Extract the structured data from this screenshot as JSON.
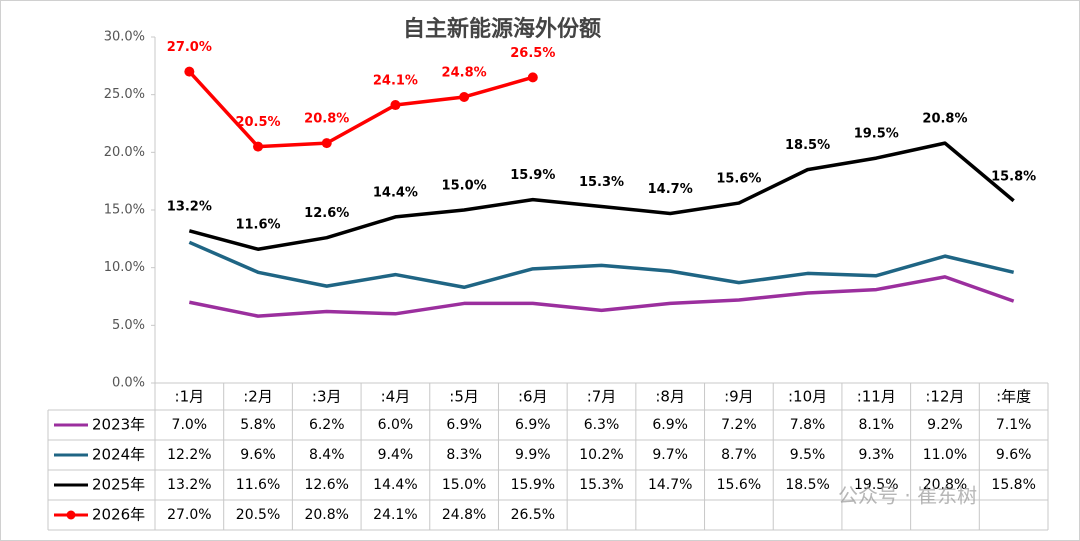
{
  "chart_data": {
    "type": "line",
    "title": "自主新能源海外份额",
    "categories": [
      ":1月",
      ":2月",
      ":3月",
      ":4月",
      ":5月",
      ":6月",
      ":7月",
      ":8月",
      ":9月",
      ":10月",
      ":11月",
      ":12月",
      ":年度"
    ],
    "ylim": [
      0,
      30
    ],
    "yticks": [
      {
        "value": 0,
        "label": "0.0%"
      },
      {
        "value": 5,
        "label": "5.0%"
      },
      {
        "value": 10,
        "label": "10.0%"
      },
      {
        "value": 15,
        "label": "15.0%"
      },
      {
        "value": 20,
        "label": "20.0%"
      },
      {
        "value": 25,
        "label": "25.0%"
      },
      {
        "value": 30,
        "label": "30.0%"
      }
    ],
    "grid": false,
    "series": [
      {
        "name": "2023年",
        "color": "#9b2f9e",
        "values": [
          7.0,
          5.8,
          6.2,
          6.0,
          6.9,
          6.9,
          6.3,
          6.9,
          7.2,
          7.8,
          8.1,
          9.2,
          7.1
        ],
        "value_labels": [
          "7.0%",
          "5.8%",
          "6.2%",
          "6.0%",
          "6.9%",
          "6.9%",
          "6.3%",
          "6.9%",
          "7.2%",
          "7.8%",
          "8.1%",
          "9.2%",
          "7.1%"
        ]
      },
      {
        "name": "2024年",
        "color": "#1f6584",
        "values": [
          12.2,
          9.6,
          8.4,
          9.4,
          8.3,
          9.9,
          10.2,
          9.7,
          8.7,
          9.5,
          9.3,
          11.0,
          9.6
        ],
        "value_labels": [
          "12.2%",
          "9.6%",
          "8.4%",
          "9.4%",
          "8.3%",
          "9.9%",
          "10.2%",
          "9.7%",
          "8.7%",
          "9.5%",
          "9.3%",
          "11.0%",
          "9.6%"
        ]
      },
      {
        "name": "2025年",
        "color": "#000000",
        "data_labels": true,
        "values": [
          13.2,
          11.6,
          12.6,
          14.4,
          15.0,
          15.9,
          15.3,
          14.7,
          15.6,
          18.5,
          19.5,
          20.8,
          15.8
        ],
        "value_labels": [
          "13.2%",
          "11.6%",
          "12.6%",
          "14.4%",
          "15.0%",
          "15.9%",
          "15.3%",
          "14.7%",
          "15.6%",
          "18.5%",
          "19.5%",
          "20.8%",
          "15.8%"
        ]
      },
      {
        "name": "2026年",
        "color": "#ff0000",
        "marker": "circle",
        "data_labels": true,
        "values": [
          27.0,
          20.5,
          20.8,
          24.1,
          24.8,
          26.5,
          null,
          null,
          null,
          null,
          null,
          null,
          null
        ],
        "value_labels": [
          "27.0%",
          "20.5%",
          "20.8%",
          "24.1%",
          "24.8%",
          "26.5%",
          null,
          null,
          null,
          null,
          null,
          null,
          null
        ]
      }
    ],
    "watermark": "公众号 · 崔东树"
  }
}
